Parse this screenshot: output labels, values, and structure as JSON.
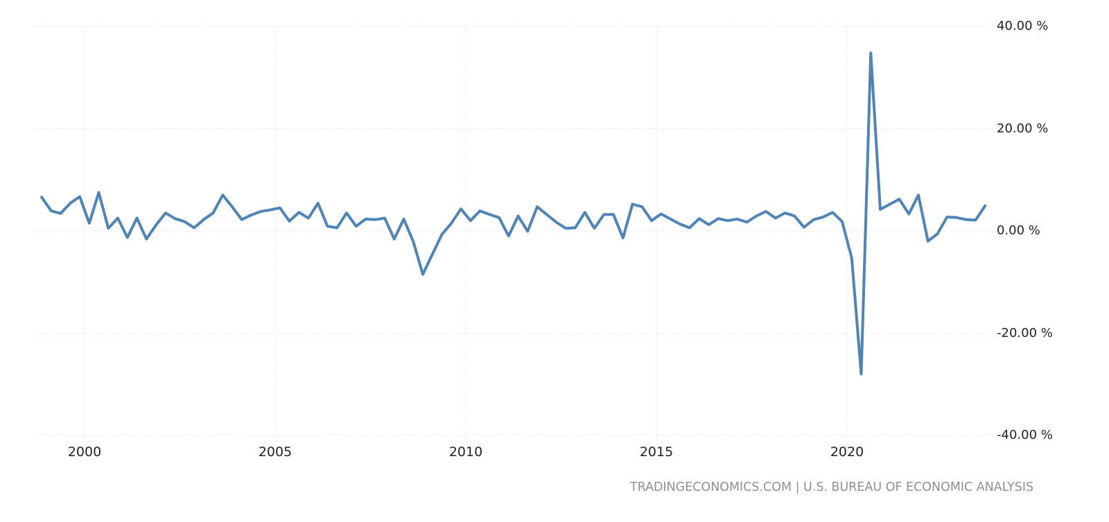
{
  "chart_data": {
    "type": "line",
    "title": "",
    "xlabel": "",
    "ylabel": "",
    "unit": "%",
    "frequency": "quarterly",
    "x_start": "1998-Q4",
    "x_end": "2023-Q3",
    "x_step_years": 0.25,
    "values": [
      6.6,
      3.9,
      3.4,
      5.4,
      6.7,
      1.5,
      7.5,
      0.5,
      2.5,
      -1.3,
      2.5,
      -1.6,
      1.1,
      3.5,
      2.4,
      1.8,
      0.6,
      2.2,
      3.5,
      7.0,
      4.7,
      2.2,
      3.1,
      3.8,
      4.1,
      4.5,
      1.9,
      3.6,
      2.5,
      5.4,
      0.9,
      0.6,
      3.5,
      0.9,
      2.3,
      2.2,
      2.5,
      -1.6,
      2.3,
      -2.1,
      -8.5,
      -4.6,
      -0.7,
      1.5,
      4.3,
      2.0,
      3.9,
      3.2,
      2.6,
      -1.0,
      2.9,
      -0.1,
      4.7,
      3.2,
      1.7,
      0.5,
      0.6,
      3.6,
      0.5,
      3.2,
      3.2,
      -1.4,
      5.2,
      4.7,
      2.0,
      3.3,
      2.3,
      1.3,
      0.6,
      2.4,
      1.2,
      2.4,
      2.0,
      2.3,
      1.7,
      2.9,
      3.8,
      2.5,
      3.5,
      2.9,
      0.7,
      2.2,
      2.7,
      3.6,
      1.8,
      -5.3,
      -28.0,
      34.8,
      4.2,
      5.2,
      6.2,
      3.3,
      7.0,
      -2.0,
      -0.6,
      2.7,
      2.6,
      2.2,
      2.1,
      4.9
    ],
    "ylim": [
      -40,
      40
    ],
    "y_tick_values": [
      40,
      20,
      0,
      -20,
      -40
    ],
    "y_tick_labels": [
      "40.00 %",
      "20.00 %",
      "0.00 %",
      "-20.00 %",
      "-40.00 %"
    ],
    "x_tick_years": [
      2000,
      2005,
      2010,
      2015,
      2020
    ],
    "x_tick_labels": [
      "2000",
      "2005",
      "2010",
      "2015",
      "2020"
    ],
    "grid": true,
    "legend_position": "none",
    "line_color": "#4e84b7",
    "grid_color": "#dedede",
    "tick_text_color": "#222222",
    "attribution_color": "#8f8f8f",
    "attribution": "TRADINGECONOMICS.COM | U.S. BUREAU OF ECONOMIC ANALYSIS"
  }
}
